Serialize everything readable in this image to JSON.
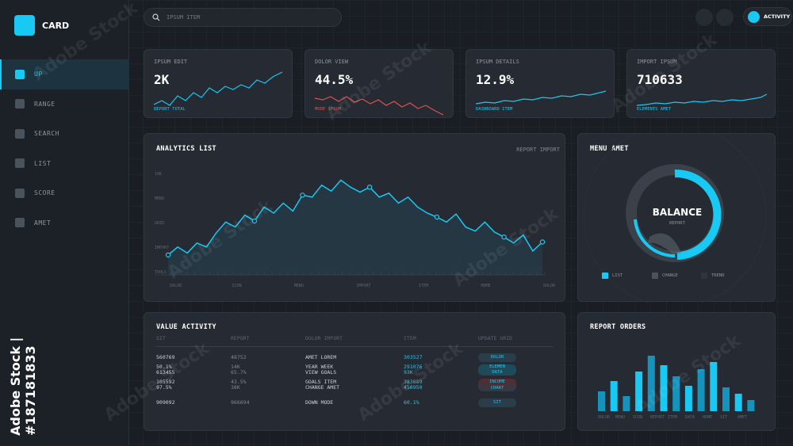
{
  "app": {
    "title": "CARD"
  },
  "sidebar": {
    "items": [
      {
        "label": "UP",
        "active": true
      },
      {
        "label": "RANGE",
        "active": false
      },
      {
        "label": "SEARCH",
        "active": false
      },
      {
        "label": "LIST",
        "active": false
      },
      {
        "label": "SCORE",
        "active": false
      },
      {
        "label": "AMET",
        "active": false
      }
    ],
    "stock_id": "Adobe Stock | #187181833"
  },
  "search": {
    "placeholder": "IPSUM ITEM"
  },
  "header": {
    "activity_label": "ACTIVITY"
  },
  "kpis": [
    {
      "label": "IPSUM EDIT",
      "value": "2K",
      "sub": "REPORT TOTAL",
      "color": "#17c9f3"
    },
    {
      "label": "DOLOR VIEW",
      "value": "44.5%",
      "sub": "MODE IPSUM",
      "color": "#d9534f"
    },
    {
      "label": "IPSUM DETAILS",
      "value": "12.9%",
      "sub": "DASHBOARD ITEM",
      "color": "#17c9f3"
    },
    {
      "label": "IMPORT IPSUM",
      "value": "710633",
      "sub": "ELEMENTS AMET",
      "color": "#17c9f3"
    }
  ],
  "analytics": {
    "title": "ANALYTICS LIST",
    "tab": "REPORT IMPORT",
    "y_labels": [
      "10K",
      "MENU",
      "GRID",
      "IMPORT",
      "TOOLS"
    ],
    "x_labels": [
      "DOLOR",
      "ICON",
      "MENU",
      "IMPORT",
      "ITEM",
      "HOME",
      "DOLOR"
    ]
  },
  "chart_data": {
    "type": "line",
    "series": [
      {
        "values": [
          12,
          20,
          14,
          24,
          20,
          34,
          45,
          40,
          52,
          46,
          60,
          54,
          64,
          56,
          72,
          70,
          82,
          76,
          87,
          80,
          75,
          80,
          70,
          74,
          64,
          70,
          60,
          54,
          50,
          45,
          53,
          40,
          36,
          45,
          35,
          30,
          24,
          32,
          16,
          25
        ]
      }
    ],
    "ylim": [
      0,
      100
    ]
  },
  "menu_amet": {
    "title": "MENU AMET",
    "center_label": "BALANCE",
    "center_sub": "REPORT",
    "legend": [
      {
        "label": "LIST",
        "color": "#17c9f3"
      },
      {
        "label": "CHANGE",
        "color": "#4a525c"
      },
      {
        "label": "TREND",
        "color": "#2f353d"
      }
    ],
    "list_pct": 0.45
  },
  "value_activity": {
    "title": "VALUE ACTIVITY",
    "headers": [
      "SIT",
      "REPORT",
      "DOLOR IMPORT",
      "ITEM",
      "UPDATE GRID"
    ],
    "rows": [
      {
        "c1": "560769",
        "c2": "48752",
        "c3": "AMET LOREM",
        "c4": "303527",
        "c5": "DOLOR"
      },
      {
        "c1": "50.1%\n613455",
        "c2": "14K\n65.7%",
        "c3": "YEAR WEEK\nVIEW GOALS",
        "c4": "291076\n93K",
        "c5": "ELEMEN\nDATA"
      },
      {
        "c1": "105592\n97.5%",
        "c2": "43.5%\n38K",
        "c3": "GOALS ITEM\nCHANGE AMET",
        "c4": "383889\n456950",
        "c5": "INCOME\nCHART"
      },
      {
        "c1": "909092",
        "c2": "966694",
        "c3": "DOWN MODE",
        "c4": "60.1%",
        "c5": "SIT"
      }
    ]
  },
  "report_orders": {
    "title": "REPORT ORDERS",
    "x_labels": [
      "DOLOR",
      "MENU",
      "ICON",
      "REPORT",
      "ITEM",
      "DATA",
      "HOME",
      "SIT",
      "AMET"
    ]
  },
  "bar_data": {
    "values": [
      25,
      38,
      19,
      50,
      70,
      58,
      44,
      32,
      53,
      62,
      30,
      22,
      14
    ]
  }
}
